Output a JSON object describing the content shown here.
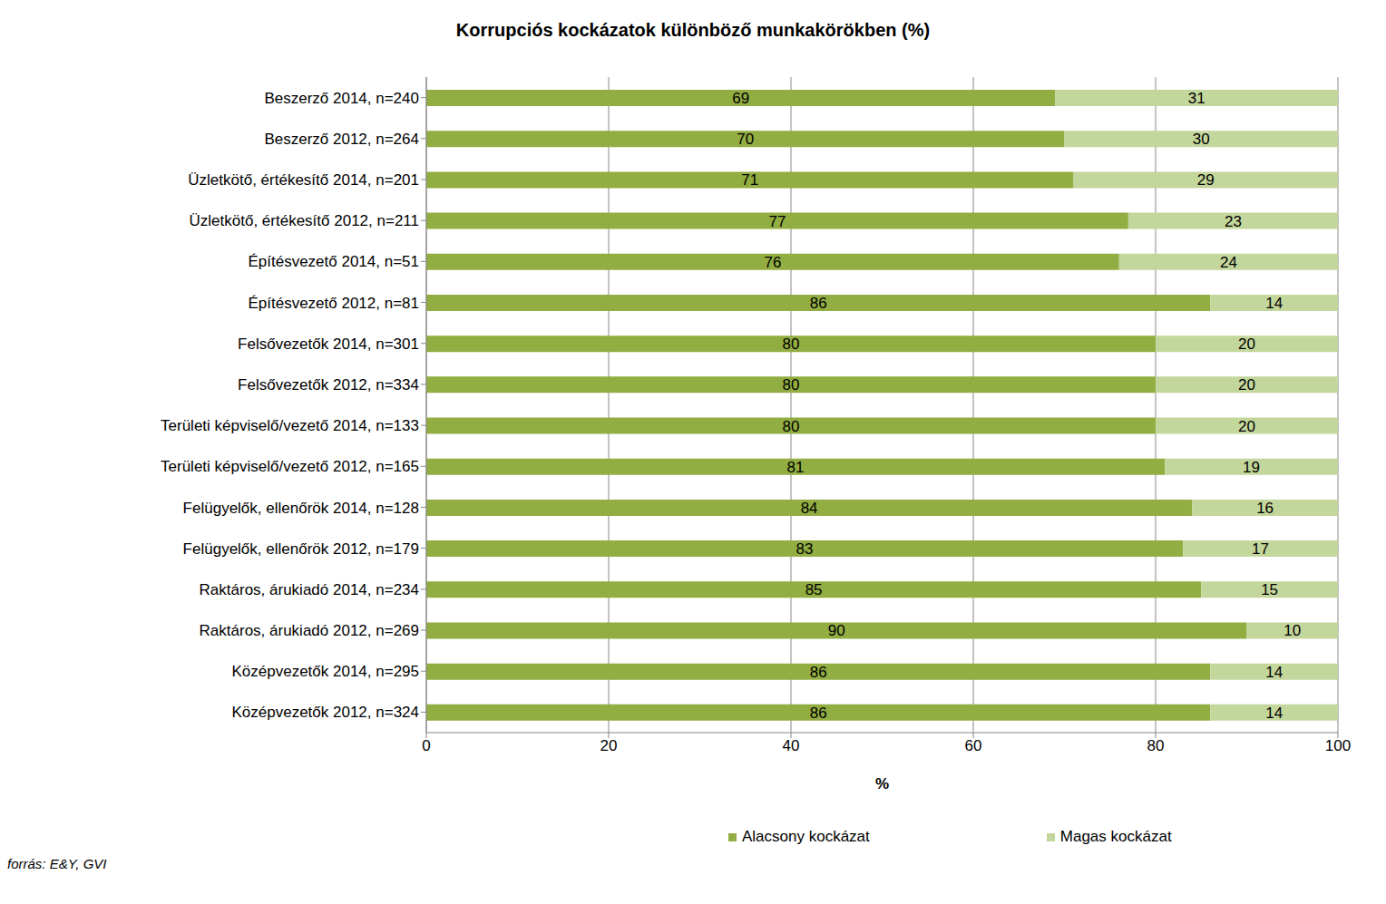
{
  "chart_data": {
    "type": "bar",
    "title": "Korrupciós kockázatok különböző munkakörökben (%)",
    "xlabel": "%",
    "source": "forrás: E&Y, GVI",
    "orientation": "horizontal",
    "stacked": true,
    "data_labels": true,
    "grid": true,
    "legend": "bottom",
    "categories": [
      "Beszerző 2014, n=240",
      "Beszerző 2012, n=264",
      "Üzletkötő, értékesítő 2014, n=201",
      "Üzletkötő, értékesítő 2012, n=211",
      "Építésvezető 2014, n=51",
      "Építésvezető 2012, n=81",
      "Felsővezetők 2014, n=301",
      "Felsővezetők 2012, n=334",
      "Területi képviselő/vezető 2014, n=133",
      "Területi képviselő/vezető 2012, n=165",
      "Felügyelők, ellenőrök 2014, n=128",
      "Felügyelők, ellenőrök 2012, n=179",
      "Raktáros, árukiadó 2014, n=234",
      "Raktáros, árukiadó 2012, n=269",
      "Középvezetők 2014, n=295",
      "Középvezetők 2012, n=324"
    ],
    "series": [
      {
        "name": "Alacsony kockázat",
        "color": "#92ad41",
        "values": [
          69,
          70,
          71,
          77,
          76,
          86,
          80,
          80,
          80,
          81,
          84,
          83,
          85,
          90,
          86,
          86
        ]
      },
      {
        "name": "Magas kockázat",
        "color": "#c3d69b",
        "values": [
          31,
          30,
          29,
          23,
          24,
          14,
          20,
          20,
          20,
          19,
          16,
          17,
          15,
          10,
          14,
          14
        ]
      }
    ],
    "xlim": [
      0,
      100
    ],
    "xticks": [
      0,
      20,
      40,
      60,
      80,
      100
    ]
  }
}
